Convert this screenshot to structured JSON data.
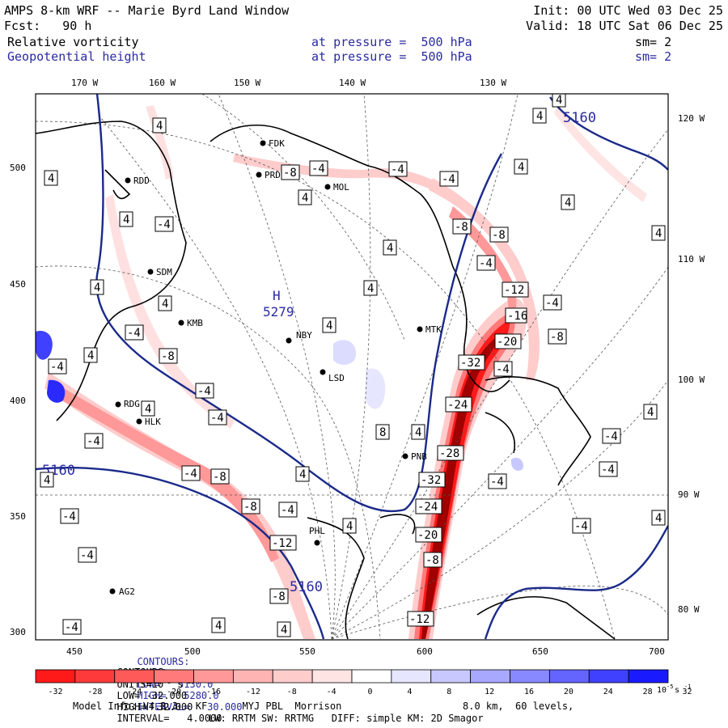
{
  "header": {
    "title": "AMPS 8-km WRF -- Marie Byrd Land Window",
    "init": "Init: 00 UTC Wed 03 Dec 25",
    "fcst": "Fcst:   90 h",
    "valid": "Valid: 18 UTC Sat 06 Dec 25",
    "field1": "Relative vorticity",
    "field1_level": "at pressure =  500 hPa",
    "field1_sm": "sm= 2",
    "field2": "Geopotential height",
    "field2_level": "at pressure =  500 hPa",
    "field2_sm": "sm= 2"
  },
  "top_ticks": [
    "170 W",
    "160 W",
    "150 W",
    "140 W",
    "130 W"
  ],
  "right_ticks": [
    "120 W",
    "110 W",
    "100 W",
    "90 W",
    "80 W"
  ],
  "left_ticks": [
    "500",
    "450",
    "400",
    "350",
    "300"
  ],
  "bottom_ticks": [
    "450",
    "500",
    "550",
    "600",
    "650",
    "700"
  ],
  "stations": [
    {
      "id": "FDK",
      "label": "FDK"
    },
    {
      "id": "PRD",
      "label": "PRD"
    },
    {
      "id": "MOL",
      "label": "MOL"
    },
    {
      "id": "RDD",
      "label": "RDD"
    },
    {
      "id": "SDM",
      "label": "SDM"
    },
    {
      "id": "KMB",
      "label": "KMB"
    },
    {
      "id": "NBY",
      "label": "NBY"
    },
    {
      "id": "MTK",
      "label": "MTK"
    },
    {
      "id": "LSD",
      "label": "LSD"
    },
    {
      "id": "RDG",
      "label": "RDG"
    },
    {
      "id": "HLK",
      "label": "HLK"
    },
    {
      "id": "PNB",
      "label": "PNB"
    },
    {
      "id": "PHL",
      "label": "PHL"
    },
    {
      "id": "AG2",
      "label": "AG2"
    }
  ],
  "high_label": {
    "letter": "H",
    "value": "5279"
  },
  "height_contour_labels": [
    "5160",
    "5160",
    "5160"
  ],
  "vort_labels": {
    "pos4": "4",
    "neg4": "-4",
    "neg8": "-8",
    "neg12": "-12",
    "neg16": "-16",
    "neg20": "-20",
    "neg24": "-24",
    "neg28": "-28",
    "neg32": "-32",
    "pos8": "8"
  },
  "contour_line1": {
    "prefix": "CONTOURS:",
    "units": "UNITS=m",
    "low": "LOW=   5130.0",
    "high": "HIGH=   5280.0",
    "interval": "INTERVAL=   30.000"
  },
  "contour_line2": {
    "prefix": "CONTOURS:",
    "units": "UNITS=10",
    "units_exp": "-5",
    "units_suffix": " s",
    "units_suffix_exp": "-1",
    "low": "LOW= -32.000",
    "high": "HIGH=  32.000",
    "interval": "INTERVAL=   4.0000"
  },
  "colorbar": {
    "labels": [
      "-32",
      "-28",
      "-24",
      "-20",
      "-16",
      "-12",
      "-8",
      "-4",
      "0",
      "4",
      "8",
      "12",
      "16",
      "20",
      "24",
      "28",
      "32"
    ],
    "units": "10",
    "units_exp": "-5",
    "units_suffix": " s",
    "units_suffix_exp": "-1",
    "colors": [
      "#ff1a1a",
      "#ff3a3a",
      "#ff5a5a",
      "#ff7a7a",
      "#ff9898",
      "#ffb4b4",
      "#ffcccc",
      "#ffe4e4",
      "#ffffff",
      "#ffffff",
      "#e6e6ff",
      "#c8c8ff",
      "#a8a8ff",
      "#8888ff",
      "#6464ff",
      "#4040ff",
      "#1a1aff"
    ]
  },
  "footer": {
    "model_info": "Model Info: V4.3.3   KF      MYJ PBL  Morrison",
    "resolution": "8.0 km,  60 levels,",
    "physics": "LW: RRTM SW: RRTMG   DIFF: simple KM: 2D Smagor"
  }
}
